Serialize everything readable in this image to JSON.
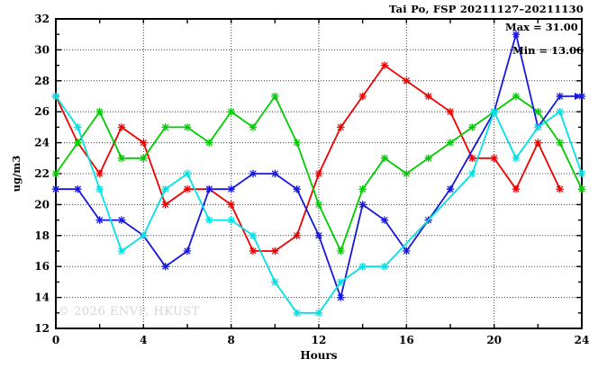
{
  "header": {
    "title": "Tai Po, FSP 20211127–20211130"
  },
  "annotation": {
    "max_label": "Max = 31.00",
    "min_label": "Min = 13.00"
  },
  "axes": {
    "ylabel": "ug/m3",
    "xlabel": "Hours"
  },
  "watermark": {
    "text": "© 2026 ENVF, HKUST"
  },
  "chart_data": {
    "type": "line",
    "title": "Tai Po, FSP 20211127–20211130",
    "xlabel": "Hours",
    "ylabel": "ug/m3",
    "xlim": [
      0,
      24
    ],
    "ylim": [
      12,
      32
    ],
    "grid": "dotted, horizontal at even values, vertical every 4 hours",
    "legend_position": "none",
    "stats": {
      "max": 31.0,
      "min": 13.0
    },
    "x_tick_labels": [
      0,
      4,
      8,
      12,
      16,
      20,
      24
    ],
    "x_minor_ticks": [
      0,
      2,
      4,
      6,
      8,
      10,
      12,
      14,
      16,
      18,
      20,
      22,
      24
    ],
    "x_gridlines": [
      4,
      8,
      12,
      16,
      20
    ],
    "y_tick_labels": [
      12,
      14,
      16,
      18,
      20,
      22,
      24,
      26,
      28,
      30,
      32
    ],
    "y_gridlines": [
      14,
      16,
      18,
      20,
      22,
      24,
      26,
      28,
      30
    ],
    "x": [
      0,
      1,
      2,
      3,
      4,
      5,
      6,
      7,
      8,
      9,
      10,
      11,
      12,
      13,
      14,
      15,
      16,
      17,
      18,
      19,
      20,
      21,
      22,
      23,
      24
    ],
    "series": [
      {
        "name": "red",
        "color": "#ee0000",
        "values": [
          27,
          24,
          22,
          25,
          24,
          20,
          21,
          21,
          20,
          17,
          17,
          18,
          22,
          25,
          27,
          29,
          28,
          27,
          26,
          23,
          23,
          21,
          24,
          21,
          null
        ],
        "end_arrow": false
      },
      {
        "name": "green",
        "color": "#00cc00",
        "values": [
          22,
          24,
          26,
          23,
          23,
          25,
          25,
          24,
          26,
          25,
          27,
          24,
          20,
          17,
          21,
          23,
          22,
          23,
          24,
          25,
          26,
          27,
          26,
          24,
          21
        ],
        "end_arrow": false
      },
      {
        "name": "blue",
        "color": "#1717dd",
        "values": [
          21,
          21,
          19,
          19,
          18,
          16,
          17,
          21,
          21,
          22,
          22,
          21,
          18,
          14,
          20,
          19,
          17,
          19,
          21,
          null,
          26,
          31,
          25,
          27,
          27
        ],
        "end_arrow": true
      },
      {
        "name": "cyan",
        "color": "#00e2e2",
        "values": [
          27,
          25,
          21,
          17,
          18,
          21,
          22,
          19,
          19,
          18,
          15,
          13,
          13,
          15,
          16,
          16,
          null,
          null,
          null,
          22,
          26,
          23,
          25,
          26,
          22
        ],
        "end_arrow": false
      }
    ]
  }
}
